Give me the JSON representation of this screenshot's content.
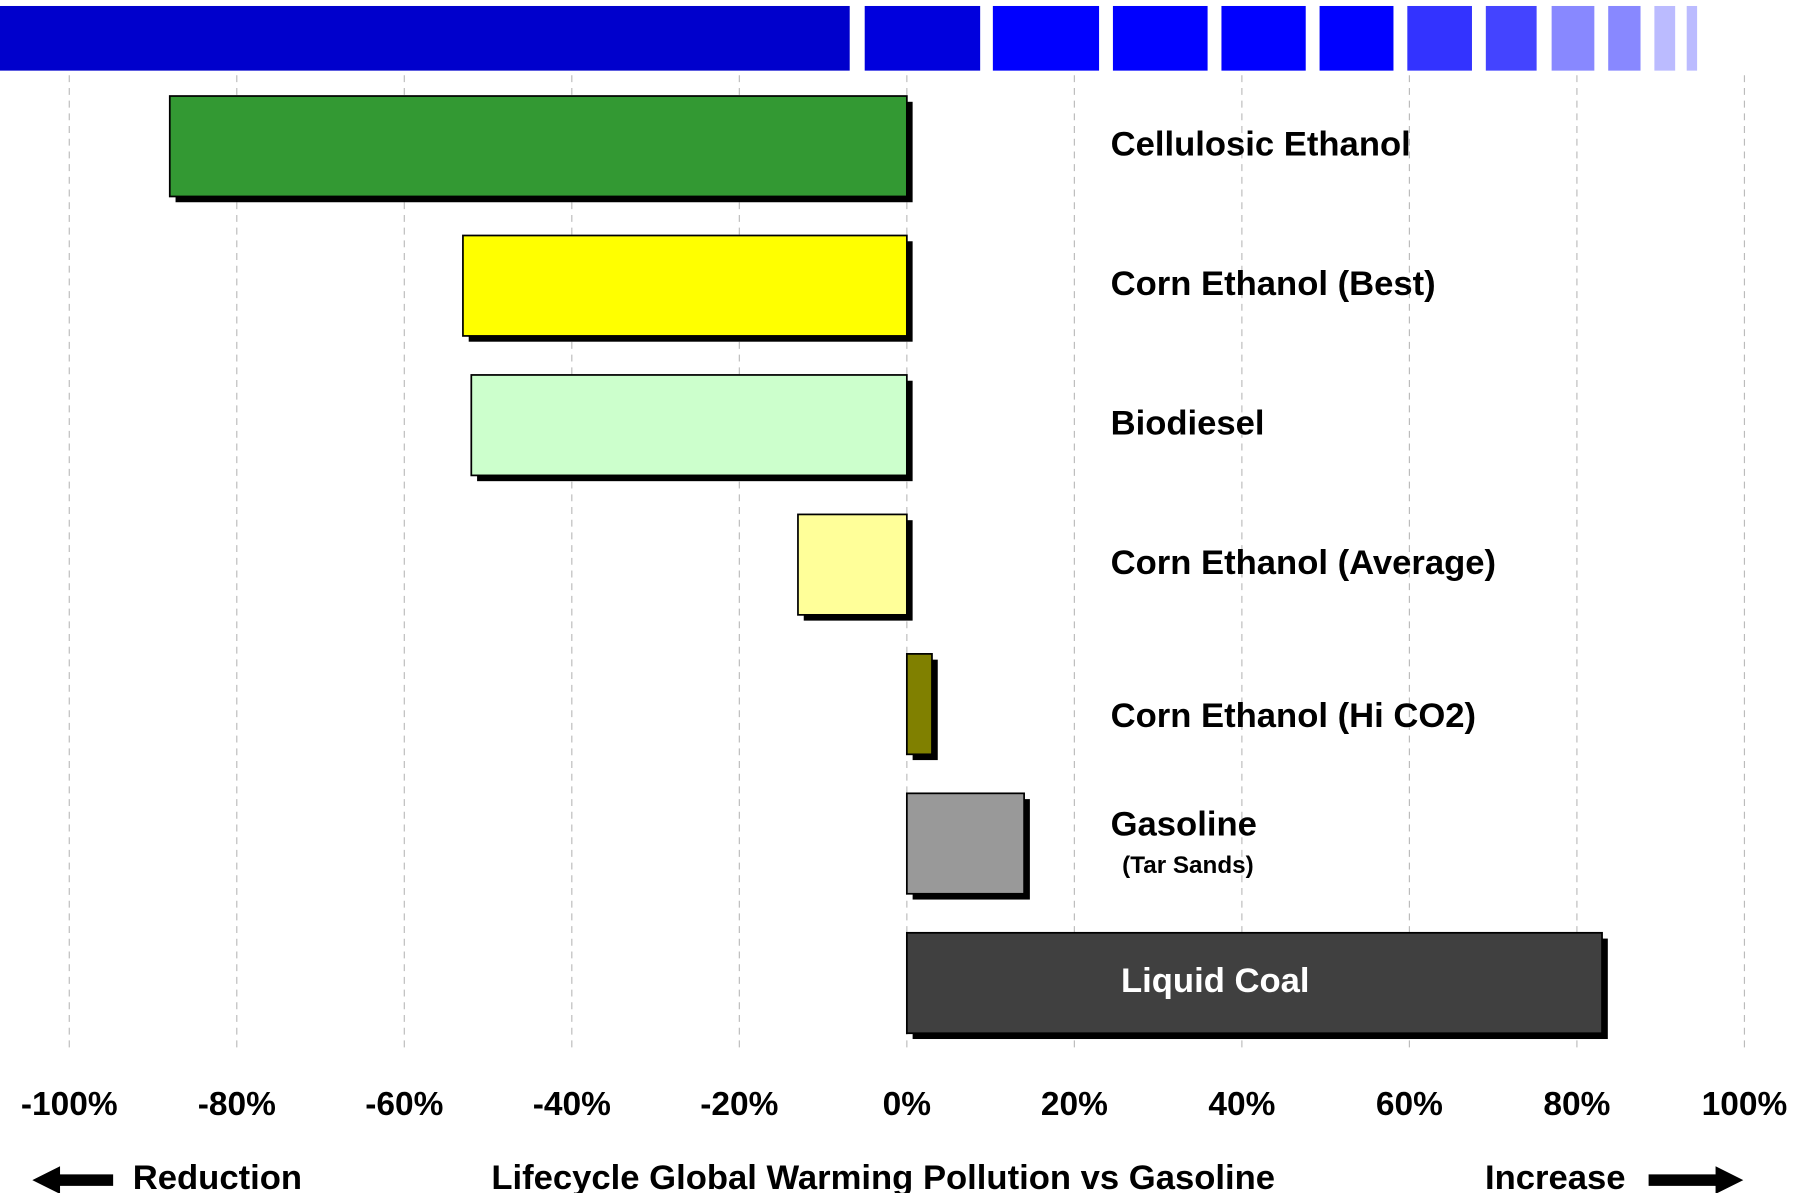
{
  "chart_data": {
    "type": "bar",
    "orientation": "horizontal",
    "x_label": "Lifecycle Global Warming Pollution vs Gasoline",
    "left_annotation": "Reduction",
    "right_annotation": "Increase",
    "categories": [
      "Cellulosic Ethanol",
      "Corn Ethanol (Best)",
      "Biodiesel",
      "Corn Ethanol (Average)",
      "Corn Ethanol (Hi CO2)",
      "Gasoline",
      "Liquid Coal"
    ],
    "category_sublabels": [
      null,
      null,
      null,
      null,
      null,
      "(Tar Sands)",
      null
    ],
    "values": [
      -88,
      -53,
      -52,
      -13,
      3,
      14,
      83
    ],
    "colors": [
      "#339933",
      "#ffff00",
      "#ccffcc",
      "#ffff99",
      "#808000",
      "#999999",
      "#404040"
    ],
    "xlim": [
      -100,
      100
    ],
    "xticks": [
      {
        "value": -100,
        "label": "-100%"
      },
      {
        "value": -80,
        "label": "-80%"
      },
      {
        "value": -60,
        "label": "-60%"
      },
      {
        "value": -40,
        "label": "-40%"
      },
      {
        "value": -20,
        "label": "-20%"
      },
      {
        "value": 0,
        "label": "0%"
      },
      {
        "value": 20,
        "label": "20%"
      },
      {
        "value": 40,
        "label": "40%"
      },
      {
        "value": 60,
        "label": "60%"
      },
      {
        "value": 80,
        "label": "80%"
      },
      {
        "value": 100,
        "label": "100%"
      }
    ],
    "grid": true
  }
}
